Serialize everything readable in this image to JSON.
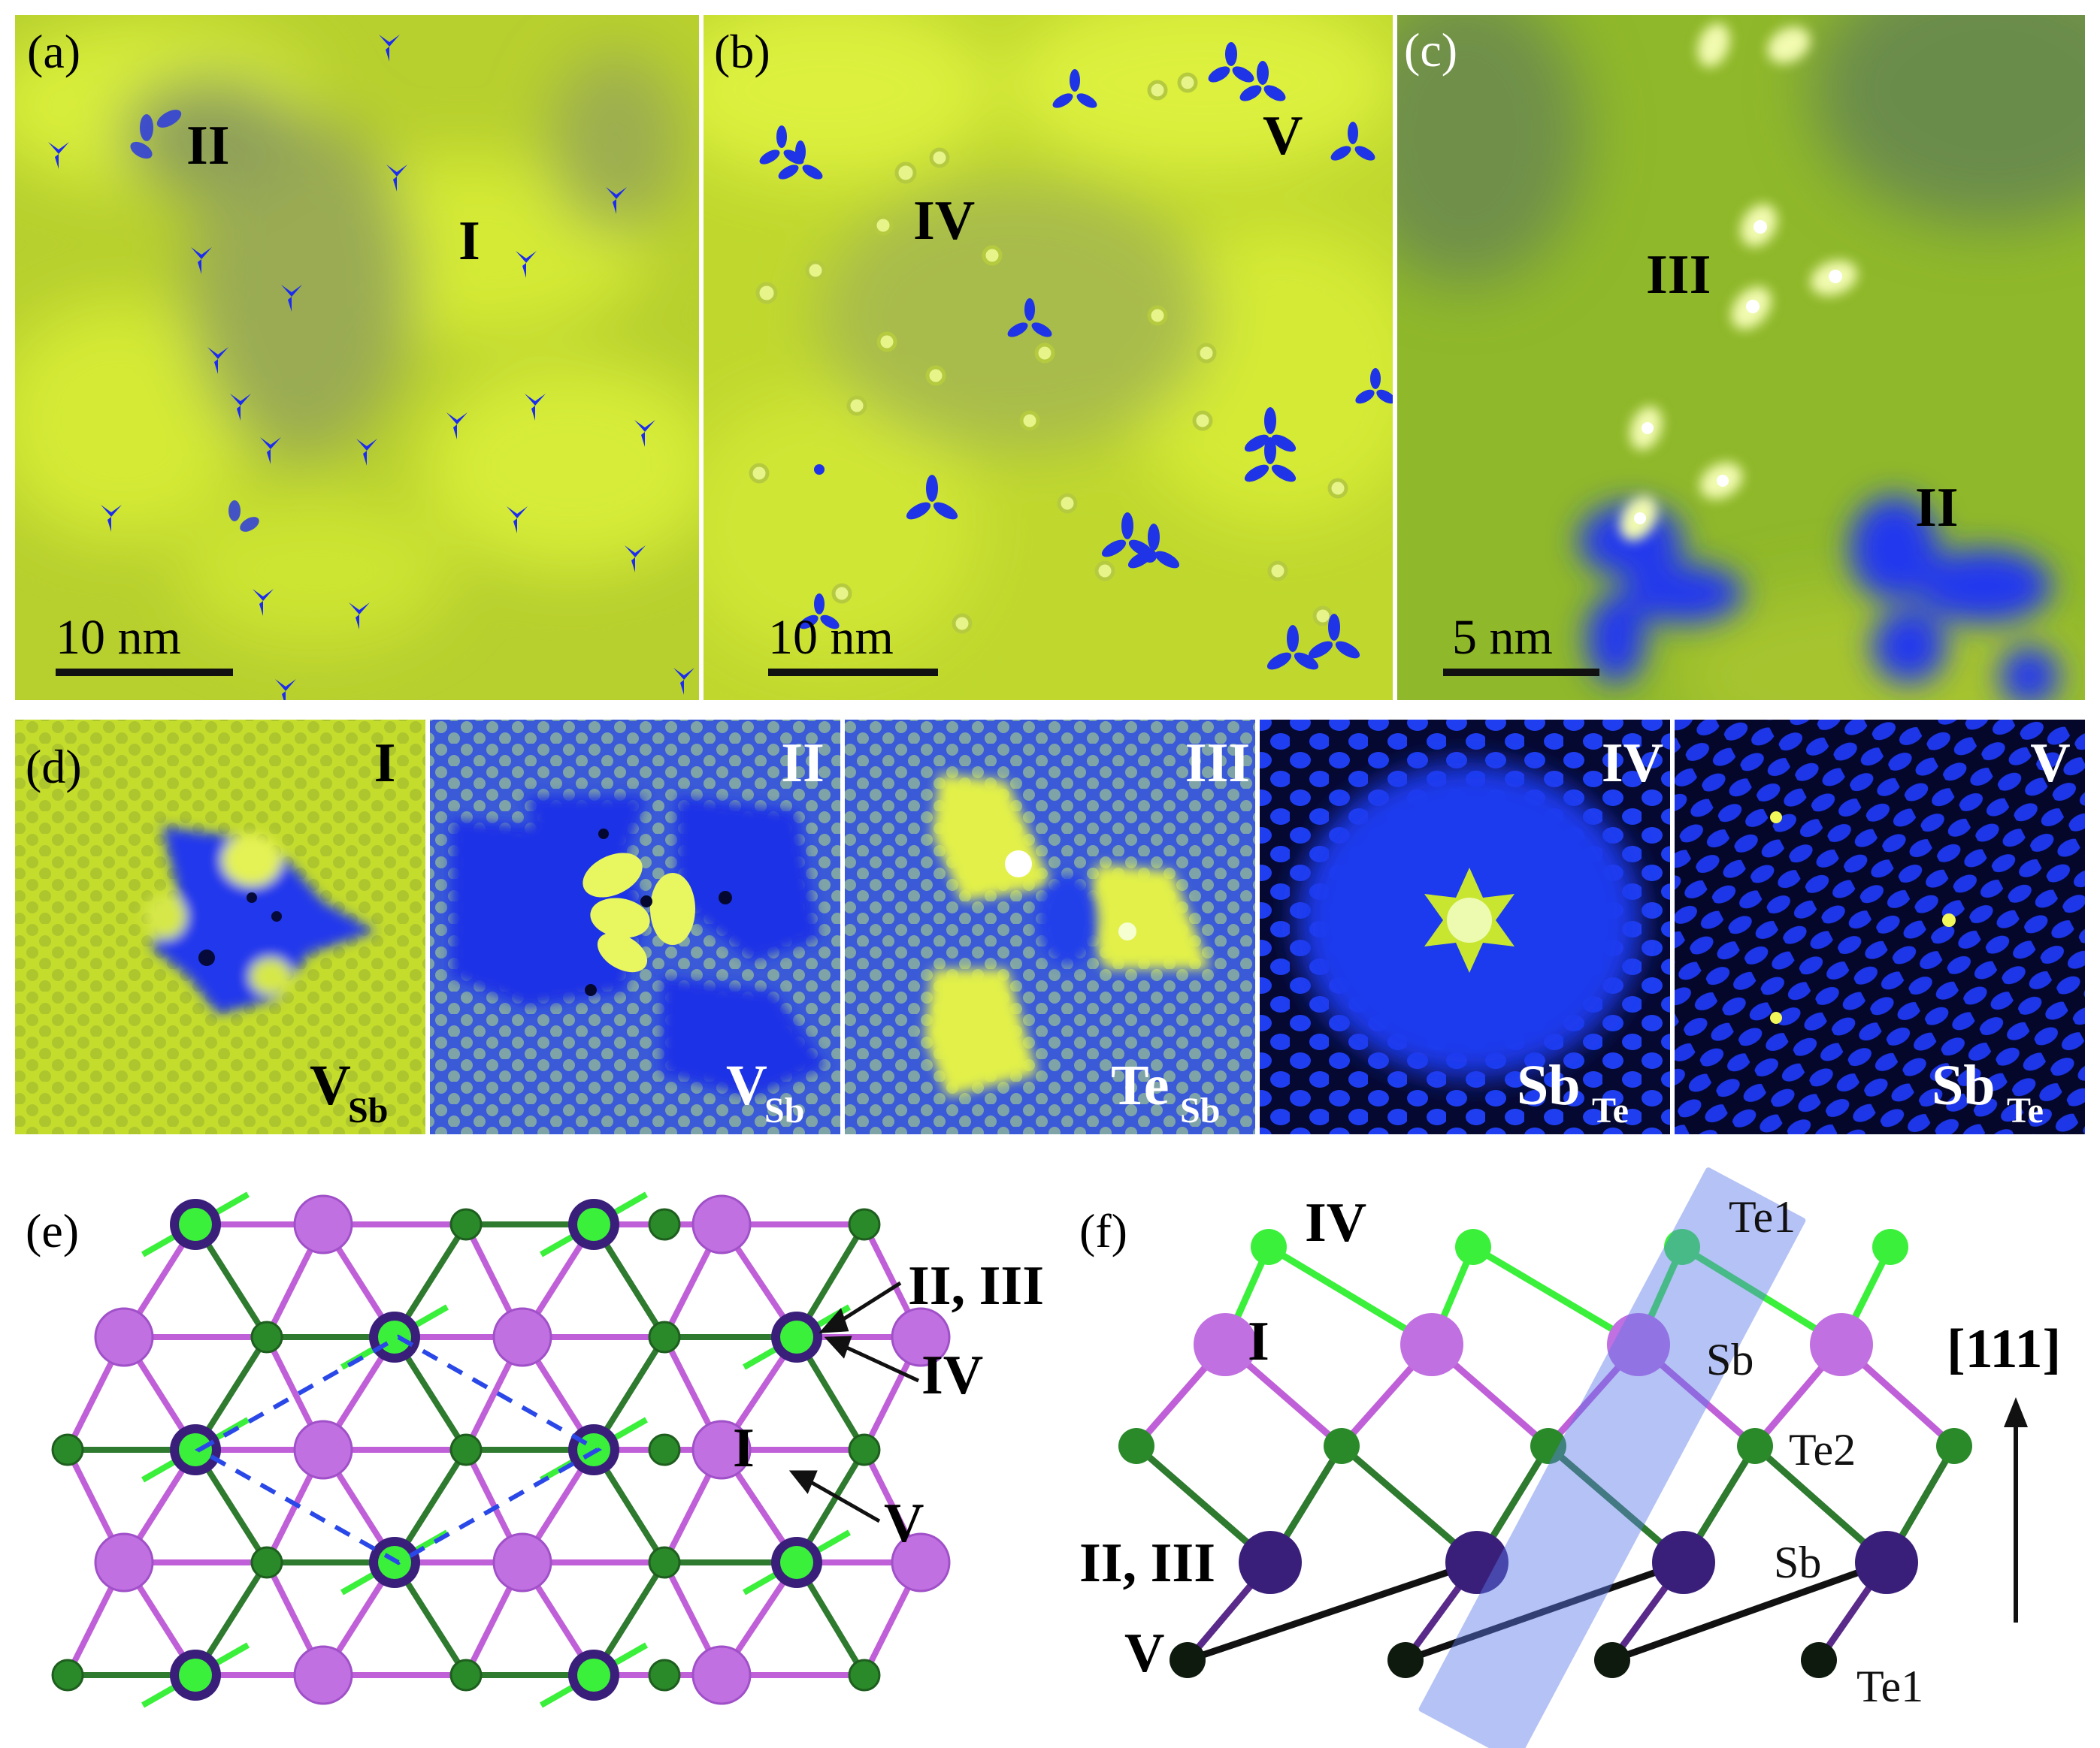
{
  "panels": {
    "a": {
      "label": "(a)",
      "marks": [
        "II",
        "I"
      ],
      "scale": "10 nm"
    },
    "b": {
      "label": "(b)",
      "marks": [
        "IV",
        "V"
      ],
      "scale": "10 nm"
    },
    "c": {
      "label": "(c)",
      "marks": [
        "III",
        "II"
      ],
      "scale": "5 nm"
    },
    "d": {
      "label": "(d)",
      "subpanels": [
        {
          "mark": "I",
          "defect": "V",
          "defect_sub": "Sb"
        },
        {
          "mark": "II",
          "defect": "V",
          "defect_sub": "Sb"
        },
        {
          "mark": "III",
          "defect": "Te",
          "defect_sub": "Sb"
        },
        {
          "mark": "IV",
          "defect": "Sb",
          "defect_sub": "Te"
        },
        {
          "mark": "V",
          "defect": "Sb",
          "defect_sub": "Te"
        }
      ]
    },
    "e": {
      "label": "(e)",
      "marks": {
        "II_III": "II, III",
        "IV": "IV",
        "I": "I",
        "V": "V"
      }
    },
    "f": {
      "label": "(f)",
      "marks": {
        "IV": "IV",
        "I": "I",
        "II_III": "II, III",
        "V": "V"
      },
      "layers": {
        "te1_top": "Te1",
        "sb_top": "Sb",
        "te2": "Te2",
        "sb_bottom": "Sb",
        "te1_bottom": "Te1"
      },
      "direction": "[111]"
    }
  },
  "colors": {
    "stm_green": "#c7e22a",
    "stm_blue": "#1b2cf0",
    "sb_atom": "#c070e0",
    "sb_dark_atom": "#3a1f7a",
    "te_atom": "#2a8a2a",
    "te_bright_atom": "#3af03a",
    "highlight": "#5a78e8"
  }
}
